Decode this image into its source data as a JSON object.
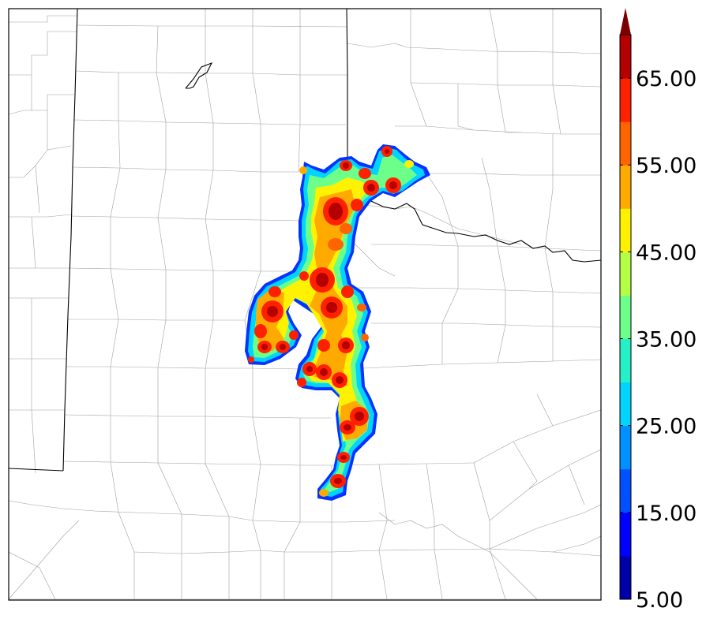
{
  "map": {
    "description_type": "radar reflectivity composite over county map",
    "background_color": "#ffffff",
    "border_color": "#000000",
    "county_line_color": "#9a9a9a"
  },
  "colorbar": {
    "orientation": "vertical",
    "extend": "max",
    "min": 5,
    "max": 70,
    "step": 5,
    "tick_labels": [
      "5.00",
      "15.00",
      "25.00",
      "35.00",
      "45.00",
      "55.00",
      "65.00"
    ],
    "colors": [
      "#0000a8",
      "#0000ff",
      "#0050ff",
      "#0090ff",
      "#00d4ff",
      "#26f0c8",
      "#6cff8a",
      "#b4ff46",
      "#fff200",
      "#ffaa00",
      "#ff6400",
      "#ff2000",
      "#b40000"
    ],
    "extend_color": "#7a0000"
  }
}
